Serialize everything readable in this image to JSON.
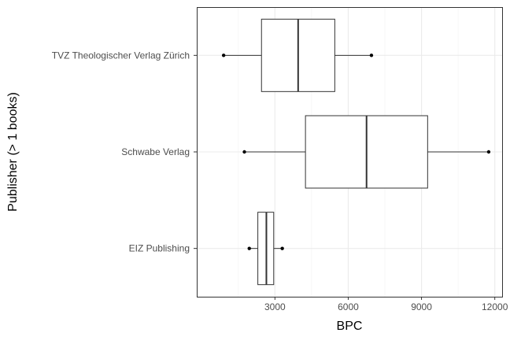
{
  "chart_data": {
    "type": "boxplot",
    "orientation": "horizontal",
    "xlabel": "BPC",
    "ylabel": "Publisher (> 1 books)",
    "xlim": [
      -200,
      12300
    ],
    "x_ticks": [
      3000,
      6000,
      9000,
      12000
    ],
    "x_tick_labels": [
      "3000",
      "6000",
      "9000",
      "12000"
    ],
    "grid": true,
    "theme": "bw",
    "categories": [
      "EIZ Publishing",
      "Schwabe Verlag",
      "TVZ Theologischer Verlag Zürich"
    ],
    "boxes": [
      {
        "category": "EIZ Publishing",
        "min": 1950,
        "q1": 2300,
        "median": 2650,
        "q3": 2950,
        "max": 3300
      },
      {
        "category": "Schwabe Verlag",
        "min": 1750,
        "q1": 4250,
        "median": 6750,
        "q3": 9250,
        "max": 11750
      },
      {
        "category": "TVZ Theologischer Verlag Zürich",
        "min": 900,
        "q1": 2450,
        "median": 3950,
        "q3": 5450,
        "max": 6950
      }
    ]
  }
}
